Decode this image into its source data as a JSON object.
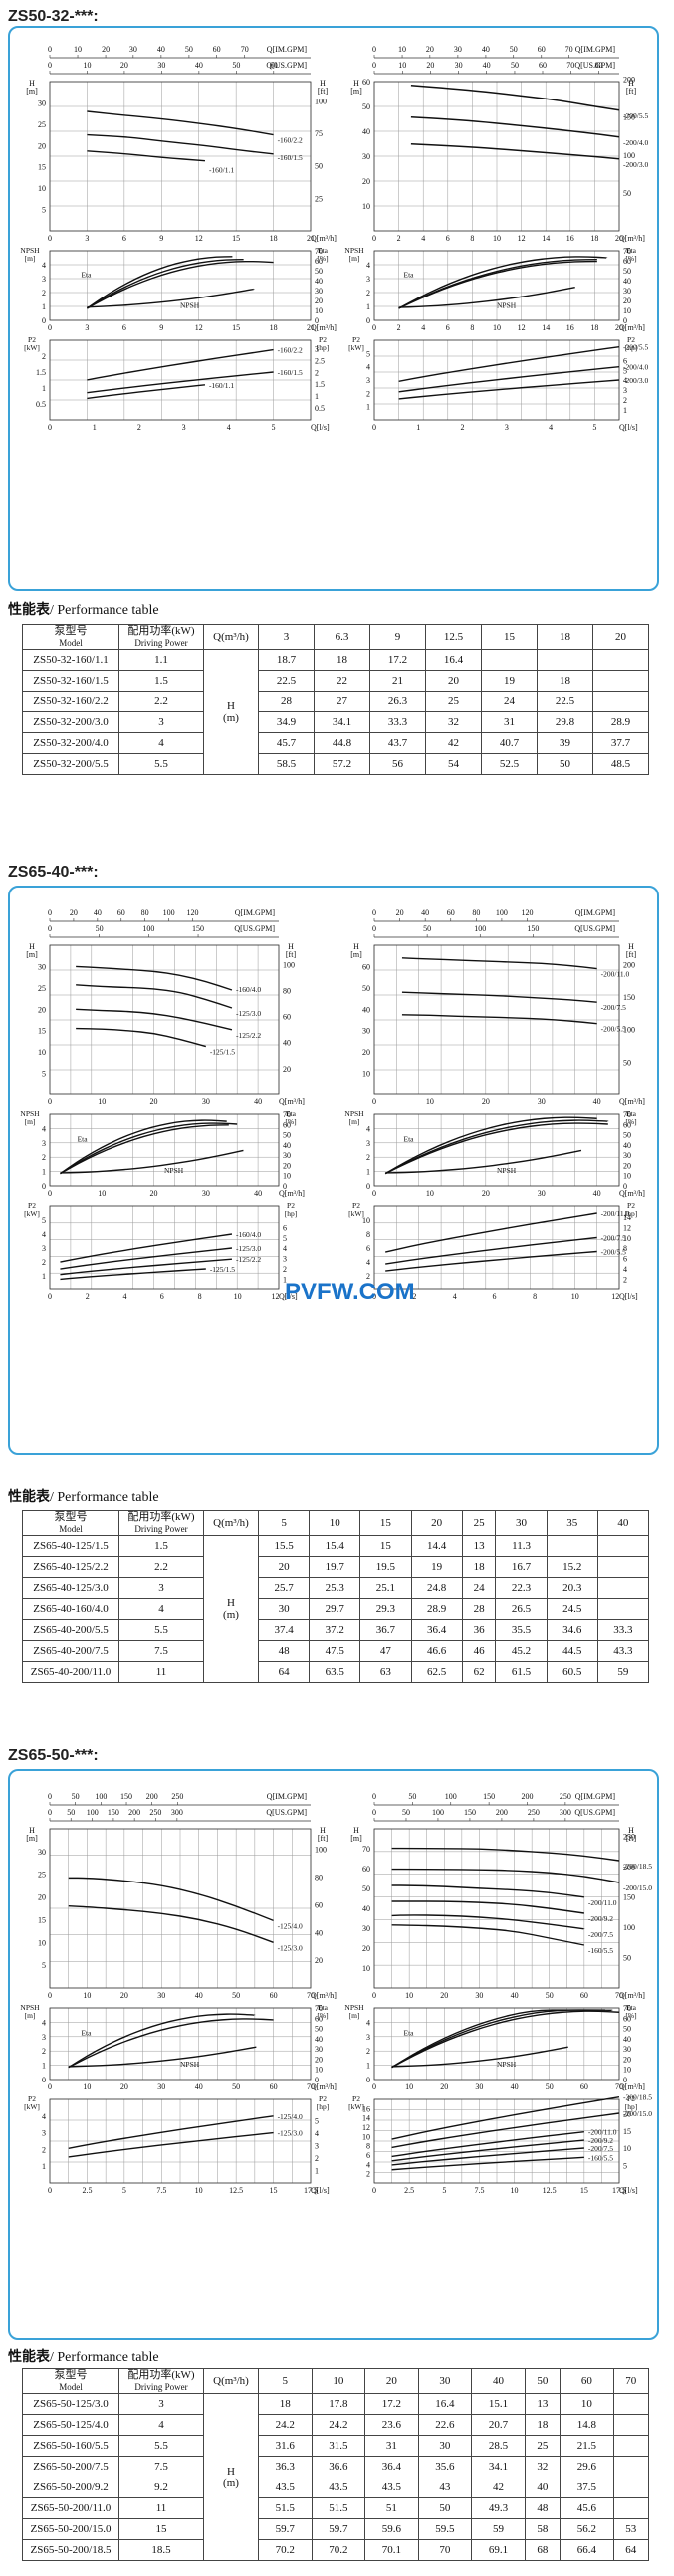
{
  "sections": [
    {
      "title": "ZS50-32-***:",
      "qim_label": "Q[IM.GPM]",
      "qus_label": "Q[US.GPM]",
      "qm3_label": "Q[m³/h]",
      "ql_label": "Q[l/s]",
      "h_label": "H [m]",
      "hft_label": "H [ft]",
      "npsh_label": "NPSH [m]",
      "eta_label": "Eta [%]",
      "p2_label": "P2 [kW]",
      "p2hp_label": "P2 [hp]",
      "table_title": "性能表",
      "table_title_en": "/ Performance table",
      "col_model": "泵型号",
      "col_model_en": "Model",
      "col_power": "配用功率(kW)",
      "col_power_en": "Driving Power",
      "col_q": "Q(m³/h)",
      "col_h": "H",
      "col_h_unit": "(m)",
      "flows": [
        "3",
        "6.3",
        "9",
        "12.5",
        "15",
        "18",
        "20"
      ],
      "rows": [
        {
          "model": "ZS50-32-160/1.1",
          "power": "1.1",
          "h": [
            "18.7",
            "18",
            "17.2",
            "16.4",
            "",
            "",
            ""
          ]
        },
        {
          "model": "ZS50-32-160/1.5",
          "power": "1.5",
          "h": [
            "22.5",
            "22",
            "21",
            "20",
            "19",
            "18",
            ""
          ]
        },
        {
          "model": "ZS50-32-160/2.2",
          "power": "2.2",
          "h": [
            "28",
            "27",
            "26.3",
            "25",
            "24",
            "22.5",
            ""
          ]
        },
        {
          "model": "ZS50-32-200/3.0",
          "power": "3",
          "h": [
            "34.9",
            "34.1",
            "33.3",
            "32",
            "31",
            "29.8",
            "28.9"
          ]
        },
        {
          "model": "ZS50-32-200/4.0",
          "power": "4",
          "h": [
            "45.7",
            "44.8",
            "43.7",
            "42",
            "40.7",
            "39",
            "37.7"
          ]
        },
        {
          "model": "ZS50-32-200/5.5",
          "power": "5.5",
          "h": [
            "58.5",
            "57.2",
            "56",
            "54",
            "52.5",
            "50",
            "48.5"
          ]
        }
      ]
    },
    {
      "title": "ZS65-40-***:",
      "table_title": "性能表",
      "table_title_en": "/ Performance table",
      "col_model": "泵型号",
      "col_model_en": "Model",
      "col_power": "配用功率(kW)",
      "col_power_en": "Driving Power",
      "col_q": "Q(m³/h)",
      "col_h": "H",
      "col_h_unit": "(m)",
      "flows": [
        "5",
        "10",
        "15",
        "20",
        "25",
        "30",
        "35",
        "40"
      ],
      "rows": [
        {
          "model": "ZS65-40-125/1.5",
          "power": "1.5",
          "h": [
            "15.5",
            "15.4",
            "15",
            "14.4",
            "13",
            "11.3",
            "",
            ""
          ]
        },
        {
          "model": "ZS65-40-125/2.2",
          "power": "2.2",
          "h": [
            "20",
            "19.7",
            "19.5",
            "19",
            "18",
            "16.7",
            "15.2",
            ""
          ]
        },
        {
          "model": "ZS65-40-125/3.0",
          "power": "3",
          "h": [
            "25.7",
            "25.3",
            "25.1",
            "24.8",
            "24",
            "22.3",
            "20.3",
            ""
          ]
        },
        {
          "model": "ZS65-40-160/4.0",
          "power": "4",
          "h": [
            "30",
            "29.7",
            "29.3",
            "28.9",
            "28",
            "26.5",
            "24.5",
            ""
          ]
        },
        {
          "model": "ZS65-40-200/5.5",
          "power": "5.5",
          "h": [
            "37.4",
            "37.2",
            "36.7",
            "36.4",
            "36",
            "35.5",
            "34.6",
            "33.3"
          ]
        },
        {
          "model": "ZS65-40-200/7.5",
          "power": "7.5",
          "h": [
            "48",
            "47.5",
            "47",
            "46.6",
            "46",
            "45.2",
            "44.5",
            "43.3"
          ]
        },
        {
          "model": "ZS65-40-200/11.0",
          "power": "11",
          "h": [
            "64",
            "63.5",
            "63",
            "62.5",
            "62",
            "61.5",
            "60.5",
            "59"
          ]
        }
      ]
    },
    {
      "title": "ZS65-50-***:",
      "table_title": "性能表",
      "table_title_en": "/ Performance table",
      "col_model": "泵型号",
      "col_model_en": "Model",
      "col_power": "配用功率(kW)",
      "col_power_en": "Driving Power",
      "col_q": "Q(m³/h)",
      "col_h": "H",
      "col_h_unit": "(m)",
      "flows": [
        "5",
        "10",
        "20",
        "30",
        "40",
        "50",
        "60",
        "70"
      ],
      "rows": [
        {
          "model": "ZS65-50-125/3.0",
          "power": "3",
          "h": [
            "18",
            "17.8",
            "17.2",
            "16.4",
            "15.1",
            "13",
            "10",
            ""
          ]
        },
        {
          "model": "ZS65-50-125/4.0",
          "power": "4",
          "h": [
            "24.2",
            "24.2",
            "23.6",
            "22.6",
            "20.7",
            "18",
            "14.8",
            ""
          ]
        },
        {
          "model": "ZS65-50-160/5.5",
          "power": "5.5",
          "h": [
            "31.6",
            "31.5",
            "31",
            "30",
            "28.5",
            "25",
            "21.5",
            ""
          ]
        },
        {
          "model": "ZS65-50-200/7.5",
          "power": "7.5",
          "h": [
            "36.3",
            "36.6",
            "36.4",
            "35.6",
            "34.1",
            "32",
            "29.6",
            ""
          ]
        },
        {
          "model": "ZS65-50-200/9.2",
          "power": "9.2",
          "h": [
            "43.5",
            "43.5",
            "43.5",
            "43",
            "42",
            "40",
            "37.5",
            ""
          ]
        },
        {
          "model": "ZS65-50-200/11.0",
          "power": "11",
          "h": [
            "51.5",
            "51.5",
            "51",
            "50",
            "49.3",
            "48",
            "45.6",
            ""
          ]
        },
        {
          "model": "ZS65-50-200/15.0",
          "power": "15",
          "h": [
            "59.7",
            "59.7",
            "59.6",
            "59.5",
            "59",
            "58",
            "56.2",
            "53"
          ]
        },
        {
          "model": "ZS65-50-200/18.5",
          "power": "18.5",
          "h": [
            "70.2",
            "70.2",
            "70.1",
            "70",
            "69.1",
            "68",
            "66.4",
            "64"
          ]
        }
      ]
    }
  ],
  "watermark": "PVFW.COM",
  "chart_data": [
    {
      "type": "line",
      "title": "",
      "ylabel": "H [m]",
      "xlabel": "Q[m³/h]",
      "ylim": [
        0,
        35
      ],
      "x_ticks": [
        0,
        3,
        6,
        9,
        12,
        15,
        18,
        21
      ],
      "series": [
        {
          "name": "-160/2.2",
          "x": [
            3,
            6.3,
            9,
            12.5,
            15,
            18
          ],
          "values": [
            28,
            27,
            26.3,
            25,
            24,
            22.5
          ]
        },
        {
          "name": "-160/1.5",
          "x": [
            3,
            6.3,
            9,
            12.5,
            15,
            18
          ],
          "values": [
            22.5,
            22,
            21,
            20,
            19,
            18
          ]
        },
        {
          "name": "-160/1.1",
          "x": [
            3,
            6.3,
            9,
            12.5
          ],
          "values": [
            18.7,
            18,
            17.2,
            16.4
          ]
        }
      ]
    },
    {
      "type": "line",
      "title": "",
      "ylabel": "H [m]",
      "xlabel": "Q[m³/h]",
      "ylim": [
        0,
        60
      ],
      "x_ticks": [
        0,
        2,
        4,
        6,
        8,
        10,
        12,
        14,
        16,
        18,
        20
      ],
      "series": [
        {
          "name": "-200/5.5",
          "x": [
            3,
            6.3,
            9,
            12.5,
            15,
            18,
            20
          ],
          "values": [
            58.5,
            57.2,
            56,
            54,
            52.5,
            50,
            48.5
          ]
        },
        {
          "name": "-200/4.0",
          "x": [
            3,
            6.3,
            9,
            12.5,
            15,
            18,
            20
          ],
          "values": [
            45.7,
            44.8,
            43.7,
            42,
            40.7,
            39,
            37.7
          ]
        },
        {
          "name": "-200/3.0",
          "x": [
            3,
            6.3,
            9,
            12.5,
            15,
            18,
            20
          ],
          "values": [
            34.9,
            34.1,
            33.3,
            32,
            31,
            29.8,
            28.9
          ]
        }
      ]
    },
    {
      "type": "line",
      "title": "",
      "ylabel": "H [m]",
      "xlabel": "Q[m³/h]",
      "ylim": [
        0,
        35
      ],
      "x_ticks": [
        0,
        10,
        20,
        30,
        40
      ],
      "series": [
        {
          "name": "-160/4.0",
          "x": [
            5,
            10,
            15,
            20,
            25,
            30,
            35
          ],
          "values": [
            30,
            29.7,
            29.3,
            28.9,
            28,
            26.5,
            24.5
          ]
        },
        {
          "name": "-125/3.0",
          "x": [
            5,
            10,
            15,
            20,
            25,
            30,
            35
          ],
          "values": [
            25.7,
            25.3,
            25.1,
            24.8,
            24,
            22.3,
            20.3
          ]
        },
        {
          "name": "-125/2.2",
          "x": [
            5,
            10,
            15,
            20,
            25,
            30,
            35
          ],
          "values": [
            20,
            19.7,
            19.5,
            19,
            18,
            16.7,
            15.2
          ]
        },
        {
          "name": "-125/1.5",
          "x": [
            5,
            10,
            15,
            20,
            25,
            30
          ],
          "values": [
            15.5,
            15.4,
            15,
            14.4,
            13,
            11.3
          ]
        }
      ]
    },
    {
      "type": "line",
      "title": "",
      "ylabel": "H [m]",
      "xlabel": "Q[m³/h]",
      "ylim": [
        0,
        70
      ],
      "x_ticks": [
        0,
        10,
        20,
        30,
        40
      ],
      "series": [
        {
          "name": "-200/11.0",
          "x": [
            5,
            10,
            15,
            20,
            25,
            30,
            35,
            40
          ],
          "values": [
            64,
            63.5,
            63,
            62.5,
            62,
            61.5,
            60.5,
            59
          ]
        },
        {
          "name": "-200/7.5",
          "x": [
            5,
            10,
            15,
            20,
            25,
            30,
            35,
            40
          ],
          "values": [
            48,
            47.5,
            47,
            46.6,
            46,
            45.2,
            44.5,
            43.3
          ]
        },
        {
          "name": "-200/5.5",
          "x": [
            5,
            10,
            15,
            20,
            25,
            30,
            35,
            40
          ],
          "values": [
            37.4,
            37.2,
            36.7,
            36.4,
            36,
            35.5,
            34.6,
            33.3
          ]
        }
      ]
    },
    {
      "type": "line",
      "title": "",
      "ylabel": "H [m]",
      "xlabel": "Q[m³/h]",
      "ylim": [
        0,
        35
      ],
      "x_ticks": [
        0,
        10,
        20,
        30,
        40,
        50,
        60,
        70
      ],
      "series": [
        {
          "name": "-125/4.0",
          "x": [
            5,
            10,
            20,
            30,
            40,
            50,
            60
          ],
          "values": [
            24.2,
            24.2,
            23.6,
            22.6,
            20.7,
            18,
            14.8
          ]
        },
        {
          "name": "-125/3.0",
          "x": [
            5,
            10,
            20,
            30,
            40,
            50,
            60
          ],
          "values": [
            18,
            17.8,
            17.2,
            16.4,
            15.1,
            13,
            10
          ]
        }
      ]
    },
    {
      "type": "line",
      "title": "",
      "ylabel": "H [m]",
      "xlabel": "Q[m³/h]",
      "ylim": [
        0,
        80
      ],
      "x_ticks": [
        0,
        10,
        20,
        30,
        40,
        50,
        60,
        70
      ],
      "series": [
        {
          "name": "-200/18.5",
          "x": [
            5,
            10,
            20,
            30,
            40,
            50,
            60,
            70
          ],
          "values": [
            70.2,
            70.2,
            70.1,
            70,
            69.1,
            68,
            66.4,
            64
          ]
        },
        {
          "name": "-200/15.0",
          "x": [
            5,
            10,
            20,
            30,
            40,
            50,
            60,
            70
          ],
          "values": [
            59.7,
            59.7,
            59.6,
            59.5,
            59,
            58,
            56.2,
            53
          ]
        },
        {
          "name": "-200/11.0",
          "x": [
            5,
            10,
            20,
            30,
            40,
            50,
            60
          ],
          "values": [
            51.5,
            51.5,
            51,
            50,
            49.3,
            48,
            45.6
          ]
        },
        {
          "name": "-200/9.2",
          "x": [
            5,
            10,
            20,
            30,
            40,
            50,
            60
          ],
          "values": [
            43.5,
            43.5,
            43.5,
            43,
            42,
            40,
            37.5
          ]
        },
        {
          "name": "-200/7.5",
          "x": [
            5,
            10,
            20,
            30,
            40,
            50,
            60
          ],
          "values": [
            36.3,
            36.6,
            36.4,
            35.6,
            34.1,
            32,
            29.6
          ]
        },
        {
          "name": "-160/5.5",
          "x": [
            5,
            10,
            20,
            30,
            40,
            50,
            60
          ],
          "values": [
            31.6,
            31.5,
            31,
            30,
            28.5,
            25,
            21.5
          ]
        }
      ]
    }
  ]
}
